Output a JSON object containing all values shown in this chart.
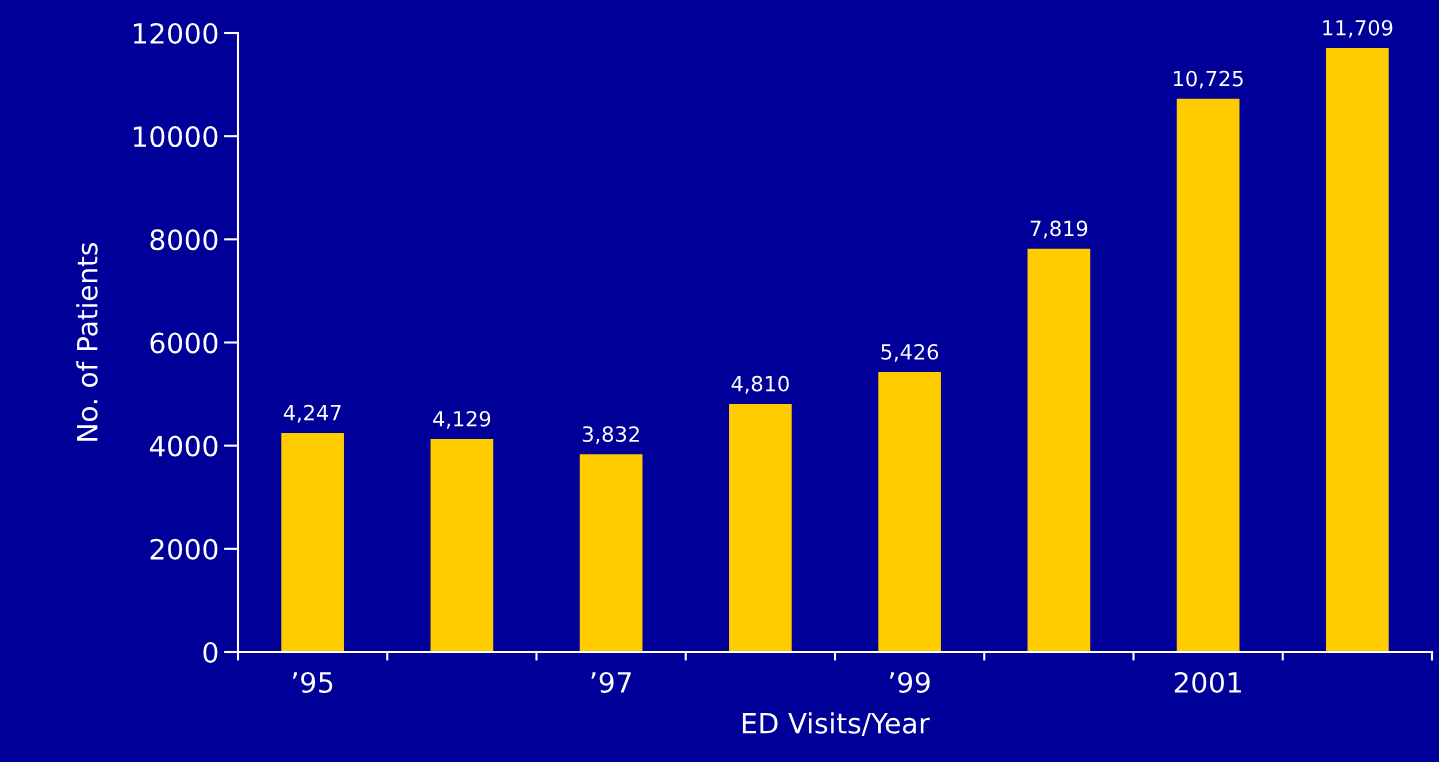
{
  "chart_data": {
    "type": "bar",
    "categories": [
      "’95",
      null,
      "’97",
      null,
      "’99",
      null,
      "2001",
      null
    ],
    "values": [
      4247,
      4129,
      3832,
      4810,
      5426,
      7819,
      10725,
      11709
    ],
    "value_labels": [
      "4,247",
      "4,129",
      "3,832",
      "4,810",
      "5,426",
      "7,819",
      "10,725",
      "11,709"
    ],
    "color": "#ffcc00",
    "xlabel": "ED Visits/Year",
    "ylabel": "No. of Patients",
    "ylim": [
      0,
      12000
    ],
    "yticks": [
      0,
      2000,
      4000,
      6000,
      8000,
      10000,
      12000
    ],
    "grid": false,
    "legend": false
  }
}
